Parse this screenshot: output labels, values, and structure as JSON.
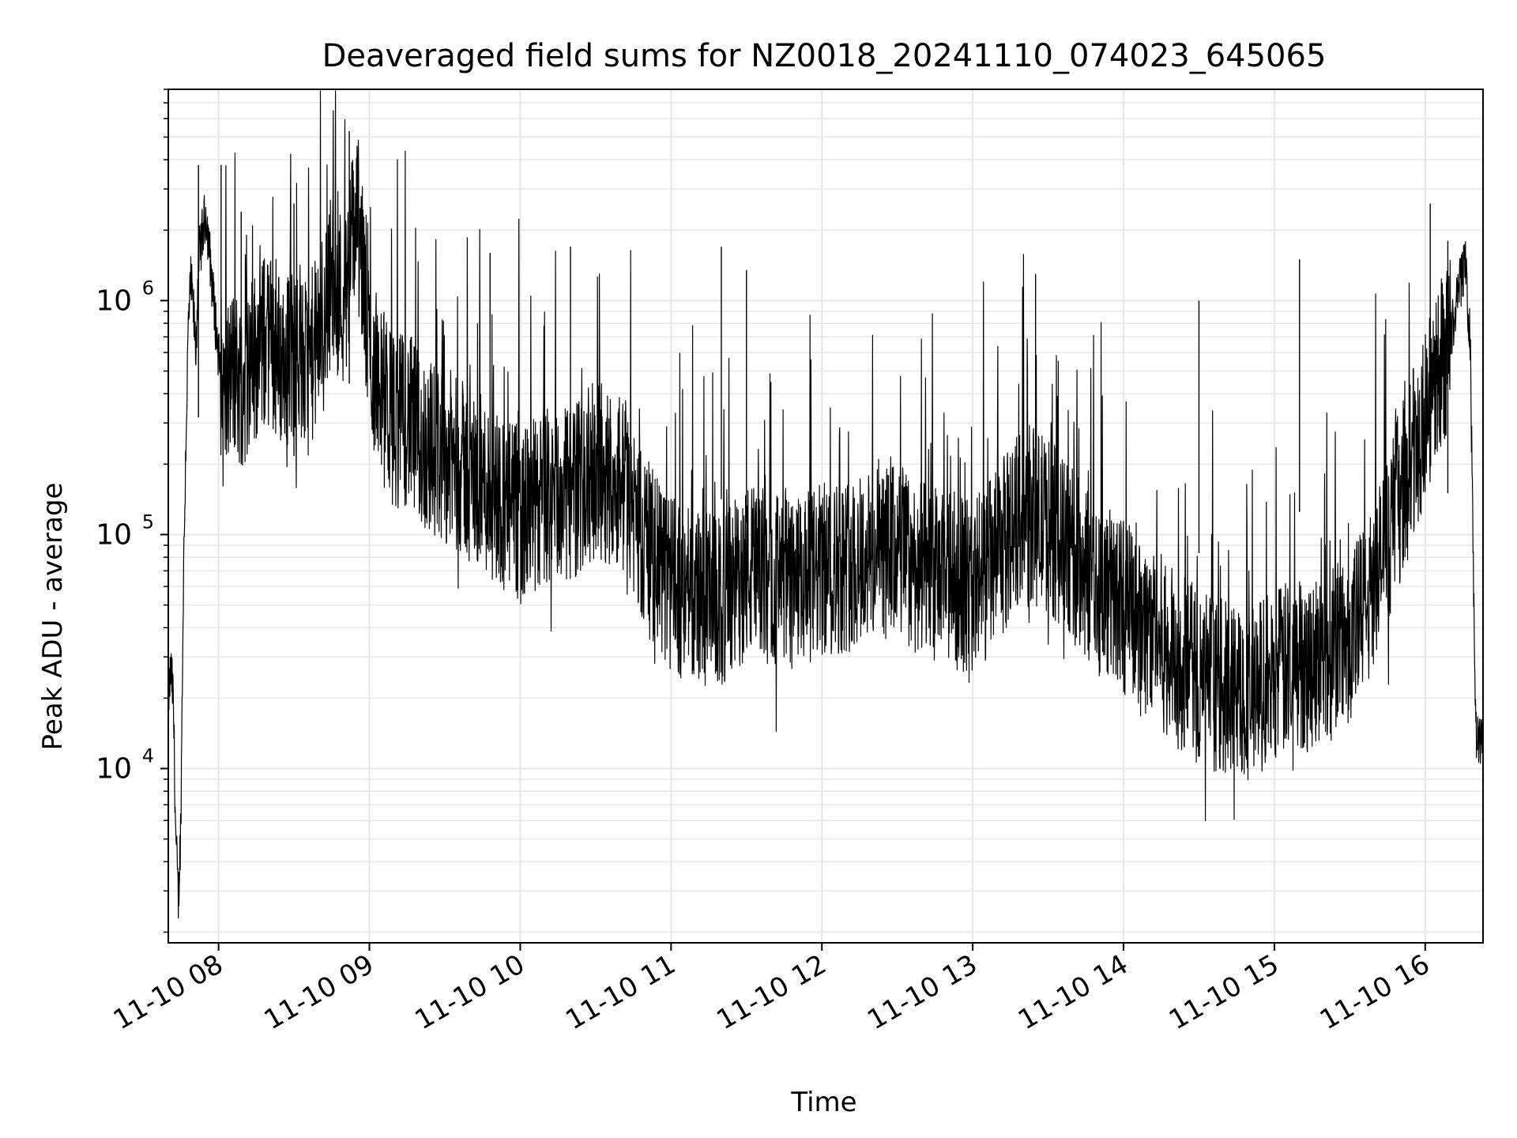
{
  "chart_data": {
    "type": "line",
    "title": "Deaveraged field sums for NZ0018_20241110_074023_645065",
    "xlabel": "Time",
    "ylabel": "Peak ADU - average",
    "xlim": [
      "2024-11-10T07:40",
      "2024-11-10T16:23"
    ],
    "ylim": [
      1800,
      8000000
    ],
    "yscale": "log",
    "grid": true,
    "line_color": "#000000",
    "grid_color": "#e6e6e6",
    "x_ticks": [
      {
        "value": "2024-11-10T08:00",
        "label": "11-10 08"
      },
      {
        "value": "2024-11-10T09:00",
        "label": "11-10 09"
      },
      {
        "value": "2024-11-10T10:00",
        "label": "11-10 10"
      },
      {
        "value": "2024-11-10T11:00",
        "label": "11-10 11"
      },
      {
        "value": "2024-11-10T12:00",
        "label": "11-10 12"
      },
      {
        "value": "2024-11-10T13:00",
        "label": "11-10 13"
      },
      {
        "value": "2024-11-10T14:00",
        "label": "11-10 14"
      },
      {
        "value": "2024-11-10T15:00",
        "label": "11-10 15"
      },
      {
        "value": "2024-11-10T16:00",
        "label": "11-10 16"
      }
    ],
    "y_ticks": [
      {
        "value": 10000,
        "base": "10",
        "exp": "4"
      },
      {
        "value": 100000,
        "base": "10",
        "exp": "5"
      },
      {
        "value": 1000000,
        "base": "10",
        "exp": "6"
      }
    ],
    "series": [
      {
        "x": [
          "2024-11-10T07:40",
          "2024-11-10T07:41",
          "2024-11-10T07:42",
          "2024-11-10T07:43",
          "2024-11-10T07:44",
          "2024-11-10T07:45",
          "2024-11-10T07:46",
          "2024-11-10T07:47",
          "2024-11-10T07:48",
          "2024-11-10T07:49",
          "2024-11-10T07:50",
          "2024-11-10T07:51",
          "2024-11-10T07:52",
          "2024-11-10T07:55",
          "2024-11-10T07:58",
          "2024-11-10T08:02",
          "2024-11-10T08:05",
          "2024-11-10T08:10",
          "2024-11-10T08:15",
          "2024-11-10T08:20",
          "2024-11-10T08:25",
          "2024-11-10T08:30",
          "2024-11-10T08:35",
          "2024-11-10T08:40",
          "2024-11-10T08:45",
          "2024-11-10T08:50",
          "2024-11-10T08:55",
          "2024-11-10T09:00",
          "2024-11-10T09:05",
          "2024-11-10T09:10",
          "2024-11-10T09:15",
          "2024-11-10T09:20",
          "2024-11-10T09:30",
          "2024-11-10T09:40",
          "2024-11-10T09:50",
          "2024-11-10T10:00",
          "2024-11-10T10:10",
          "2024-11-10T10:20",
          "2024-11-10T10:30",
          "2024-11-10T10:40",
          "2024-11-10T10:50",
          "2024-11-10T11:00",
          "2024-11-10T11:10",
          "2024-11-10T11:20",
          "2024-11-10T11:30",
          "2024-11-10T11:40",
          "2024-11-10T11:50",
          "2024-11-10T12:00",
          "2024-11-10T12:10",
          "2024-11-10T12:20",
          "2024-11-10T12:30",
          "2024-11-10T12:40",
          "2024-11-10T12:50",
          "2024-11-10T13:00",
          "2024-11-10T13:10",
          "2024-11-10T13:20",
          "2024-11-10T13:30",
          "2024-11-10T13:40",
          "2024-11-10T13:50",
          "2024-11-10T14:00",
          "2024-11-10T14:10",
          "2024-11-10T14:20",
          "2024-11-10T14:30",
          "2024-11-10T14:40",
          "2024-11-10T14:50",
          "2024-11-10T15:00",
          "2024-11-10T15:10",
          "2024-11-10T15:20",
          "2024-11-10T15:30",
          "2024-11-10T15:40",
          "2024-11-10T15:50",
          "2024-11-10T16:00",
          "2024-11-10T16:05",
          "2024-11-10T16:10",
          "2024-11-10T16:12",
          "2024-11-10T16:14",
          "2024-11-10T16:16",
          "2024-11-10T16:18",
          "2024-11-10T16:20",
          "2024-11-10T16:23"
        ],
        "y": [
          20000,
          26000,
          20000,
          5000,
          2700,
          6000,
          60000,
          250000,
          800000,
          1200000,
          900000,
          600000,
          1500000,
          2400000,
          1000000,
          350000,
          500000,
          450000,
          600000,
          700000,
          550000,
          600000,
          500000,
          700000,
          1300000,
          1000000,
          2500000,
          600000,
          400000,
          300000,
          320000,
          250000,
          220000,
          180000,
          150000,
          120000,
          140000,
          150000,
          190000,
          170000,
          90000,
          60000,
          55000,
          50000,
          70000,
          65000,
          60000,
          70000,
          75000,
          80000,
          85000,
          70000,
          65000,
          60000,
          80000,
          130000,
          110000,
          80000,
          60000,
          50000,
          40000,
          30000,
          25000,
          22000,
          21000,
          25000,
          28000,
          30000,
          35000,
          60000,
          150000,
          300000,
          500000,
          700000,
          900000,
          1200000,
          1500000,
          600000,
          15000,
          12000
        ]
      }
    ],
    "spikes": [
      {
        "x": "2024-11-10T07:52",
        "y": 3800000
      },
      {
        "x": "2024-11-10T08:01",
        "y": 3800000
      },
      {
        "x": "2024-11-10T08:09",
        "y": 2400000
      },
      {
        "x": "2024-11-10T08:30",
        "y": 2600000
      },
      {
        "x": "2024-11-10T08:52",
        "y": 5300000
      },
      {
        "x": "2024-11-10T09:48",
        "y": 1600000
      },
      {
        "x": "2024-11-10T10:20",
        "y": 1700000
      },
      {
        "x": "2024-11-10T11:20",
        "y": 1700000
      },
      {
        "x": "2024-11-10T11:30",
        "y": 1350000
      },
      {
        "x": "2024-11-10T13:25",
        "y": 1300000
      },
      {
        "x": "2024-11-10T14:30",
        "y": 1000000
      },
      {
        "x": "2024-11-10T15:10",
        "y": 1500000
      },
      {
        "x": "2024-11-10T16:02",
        "y": 2600000
      },
      {
        "x": "2024-11-10T16:09",
        "y": 1800000
      }
    ]
  }
}
